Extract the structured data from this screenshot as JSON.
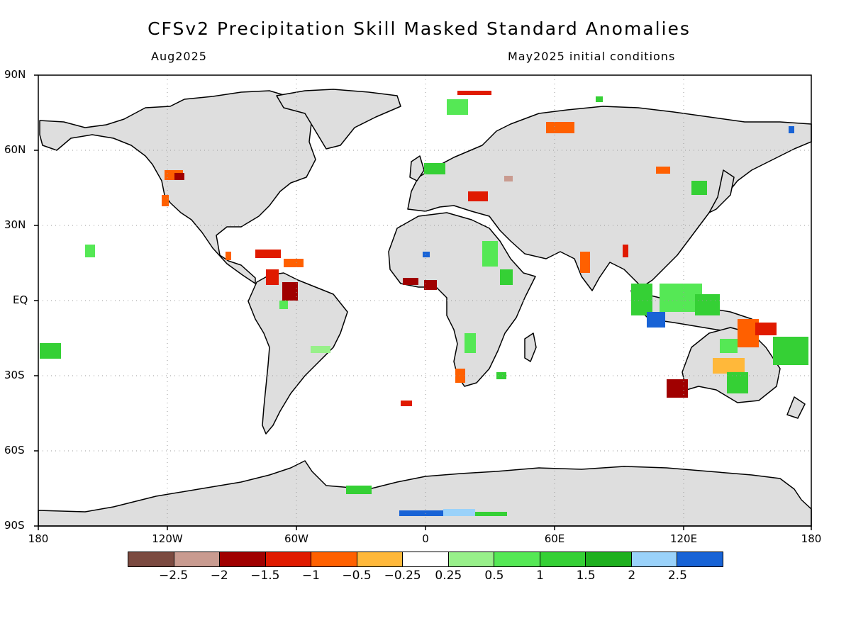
{
  "title": "CFSv2 Precipitation Skill Masked Standard Anomalies",
  "subtitle_left": "Aug2025",
  "subtitle_right": "May2025 initial conditions",
  "lat_ticks": [
    "90N",
    "60N",
    "30N",
    "EQ",
    "30S",
    "60S",
    "90S"
  ],
  "lon_ticks": [
    "180",
    "120W",
    "60W",
    "0",
    "60E",
    "120E",
    "180"
  ],
  "colorbar": {
    "colors": [
      "#7b4a40",
      "#c99b90",
      "#a00000",
      "#e01a00",
      "#ff6000",
      "#ffb83a",
      "#ffffff",
      "#98f08a",
      "#55e855",
      "#35d035",
      "#1eb01e",
      "#9ad2fa",
      "#1863d6"
    ],
    "labels": [
      "-2.5",
      "-2",
      "-1.5",
      "-1",
      "-0.5",
      "-0.25",
      "0.25",
      "0.5",
      "1",
      "1.5",
      "2",
      "2.5"
    ]
  },
  "colors": {
    "land": "#dedede",
    "ocean": "#ffffff",
    "coast": "#000000",
    "grid": "#9a9a9a"
  }
}
